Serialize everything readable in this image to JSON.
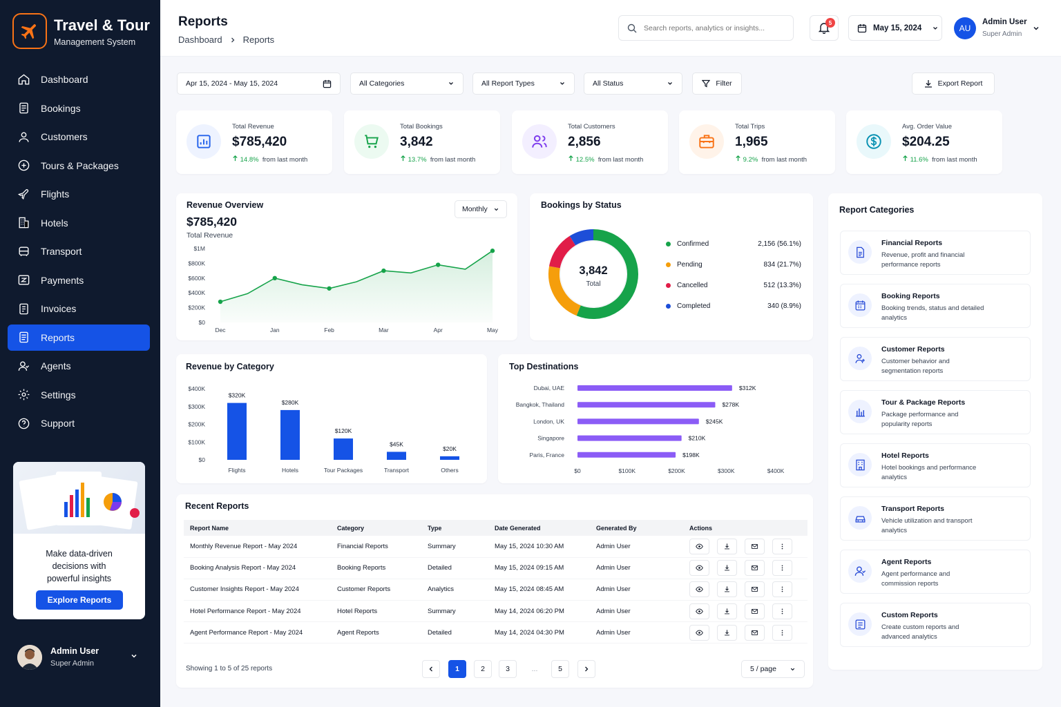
{
  "brand": {
    "title": "Travel & Tour",
    "subtitle": "Management System"
  },
  "nav": [
    {
      "label": "Dashboard",
      "icon": "home-icon"
    },
    {
      "label": "Bookings",
      "icon": "document-icon"
    },
    {
      "label": "Customers",
      "icon": "user-icon"
    },
    {
      "label": "Tours & Packages",
      "icon": "plus-circle-icon"
    },
    {
      "label": "Flights",
      "icon": "plane-icon"
    },
    {
      "label": "Hotels",
      "icon": "building-icon"
    },
    {
      "label": "Transport",
      "icon": "bus-icon"
    },
    {
      "label": "Payments",
      "icon": "card-icon"
    },
    {
      "label": "Invoices",
      "icon": "invoice-icon"
    },
    {
      "label": "Reports",
      "icon": "report-icon",
      "active": true
    },
    {
      "label": "Agents",
      "icon": "agent-icon"
    },
    {
      "label": "Settings",
      "icon": "gear-icon"
    },
    {
      "label": "Support",
      "icon": "help-icon"
    }
  ],
  "promo": {
    "text": "Make data-driven\ndecisions with\npowerful insights",
    "button": "Explore Reports"
  },
  "sidebar_user": {
    "name": "Admin User",
    "role": "Super Admin"
  },
  "header": {
    "title": "Reports",
    "breadcrumb": [
      "Dashboard",
      "Reports"
    ],
    "search_placeholder": "Search reports, analytics or insights...",
    "notifications": "5",
    "date": "May 15, 2024",
    "user": {
      "initials": "AU",
      "name": "Admin User",
      "role": "Super Admin"
    }
  },
  "filters": {
    "date_range": "Apr 15, 2024 - May 15, 2024",
    "category": "All Categories",
    "report_type": "All Report Types",
    "status": "All Status",
    "filter_label": "Filter",
    "export_label": "Export Report"
  },
  "stats": [
    {
      "label": "Total Revenue",
      "value": "$785,420",
      "change": "14.8%",
      "suffix": "from last month",
      "color": "#2563eb",
      "bg": "#eef3ff",
      "icon": "chart-icon"
    },
    {
      "label": "Total Bookings",
      "value": "3,842",
      "change": "13.7%",
      "suffix": "from last month",
      "color": "#16a34a",
      "bg": "#ecfaf1",
      "icon": "cart-icon"
    },
    {
      "label": "Total Customers",
      "value": "2,856",
      "change": "12.5%",
      "suffix": "from last month",
      "color": "#7c3aed",
      "bg": "#f3efff",
      "icon": "users-icon"
    },
    {
      "label": "Total Trips",
      "value": "1,965",
      "change": "9.2%",
      "suffix": "from last month",
      "color": "#f97316",
      "bg": "#fff3e9",
      "icon": "suitcase-icon"
    },
    {
      "label": "Avg. Order Value",
      "value": "$204.25",
      "change": "11.6%",
      "suffix": "from last month",
      "color": "#0891b2",
      "bg": "#e9f8fb",
      "icon": "dollar-icon"
    }
  ],
  "revenue_overview": {
    "title": "Revenue Overview",
    "value": "$785,420",
    "sublabel": "Total Revenue",
    "period": "Monthly"
  },
  "bookings_status": {
    "title": "Bookings by Status",
    "total": "3,842",
    "total_label": "Total"
  },
  "revenue_category": {
    "title": "Revenue by Category"
  },
  "top_destinations": {
    "title": "Top Destinations"
  },
  "chart_data": [
    {
      "type": "area",
      "title": "Revenue Overview",
      "categories": [
        "Dec",
        "Jan",
        "Feb",
        "Mar",
        "Apr",
        "May"
      ],
      "x": [
        "Dec",
        "",
        "Jan",
        "",
        "Feb",
        "",
        "Mar",
        "",
        "Apr",
        "",
        "May"
      ],
      "values": [
        280000,
        390000,
        600000,
        510000,
        460000,
        550000,
        700000,
        670000,
        780000,
        720000,
        970000
      ],
      "yticks": [
        "$0",
        "$200K",
        "$400K",
        "$600K",
        "$800K",
        "$1M"
      ],
      "ylim": [
        0,
        1000000
      ],
      "color": "#16a34a",
      "grid": false
    },
    {
      "type": "pie",
      "title": "Bookings by Status",
      "series": [
        {
          "name": "Confirmed",
          "value": 2156,
          "label": "2,156 (56.1%)",
          "color": "#16a34a"
        },
        {
          "name": "Pending",
          "value": 834,
          "label": "834 (21.7%)",
          "color": "#f59e0b"
        },
        {
          "name": "Cancelled",
          "value": 512,
          "label": "512 (13.3%)",
          "color": "#e11d48"
        },
        {
          "name": "Completed",
          "value": 340,
          "label": "340 (8.9%)",
          "color": "#1d4ed8"
        }
      ]
    },
    {
      "type": "bar",
      "title": "Revenue by Category",
      "categories": [
        "Flights",
        "Hotels",
        "Tour Packages",
        "Transport",
        "Others"
      ],
      "values": [
        320000,
        280000,
        120000,
        45000,
        20000
      ],
      "labels": [
        "$320K",
        "$280K",
        "$120K",
        "$45K",
        "$20K"
      ],
      "yticks": [
        "$0",
        "$100K",
        "$200K",
        "$300K",
        "$400K"
      ],
      "ylim": [
        0,
        400000
      ],
      "color": "#1553e6"
    },
    {
      "type": "bar",
      "orientation": "horizontal",
      "title": "Top Destinations",
      "categories": [
        "Dubai, UAE",
        "Bangkok, Thailand",
        "London, UK",
        "Singapore",
        "Paris, France"
      ],
      "values": [
        312000,
        278000,
        245000,
        210000,
        198000
      ],
      "labels": [
        "$312K",
        "$278K",
        "$245K",
        "$210K",
        "$198K"
      ],
      "xticks": [
        "$0",
        "$100K",
        "$200K",
        "$300K",
        "$400K"
      ],
      "xlim": [
        0,
        400000
      ],
      "color": "#8b5cf6"
    }
  ],
  "report_categories": {
    "title": "Report Categories",
    "items": [
      {
        "title": "Financial Reports",
        "desc": "Revenue, profit and financial performance reports",
        "icon": "file-icon"
      },
      {
        "title": "Booking Reports",
        "desc": "Booking trends, status and detailed analytics",
        "icon": "calendar-icon"
      },
      {
        "title": "Customer Reports",
        "desc": "Customer behavior and segmentation reports",
        "icon": "user-group-icon"
      },
      {
        "title": "Tour & Package Reports",
        "desc": "Package performance and popularity reports",
        "icon": "bars-icon"
      },
      {
        "title": "Hotel Reports",
        "desc": "Hotel bookings and performance analytics",
        "icon": "hotel-icon"
      },
      {
        "title": "Transport Reports",
        "desc": "Vehicle utilization and transport analytics",
        "icon": "car-icon"
      },
      {
        "title": "Agent Reports",
        "desc": "Agent performance and commission reports",
        "icon": "agent-icon"
      },
      {
        "title": "Custom Reports",
        "desc": "Create custom reports and advanced analytics",
        "icon": "custom-icon"
      }
    ]
  },
  "recent_reports": {
    "title": "Recent Reports",
    "columns": [
      "Report Name",
      "Category",
      "Type",
      "Date Generated",
      "Generated By",
      "Actions"
    ],
    "rows": [
      [
        "Monthly Revenue Report - May 2024",
        "Financial Reports",
        "Summary",
        "May 15, 2024 10:30 AM",
        "Admin User"
      ],
      [
        "Booking Analysis Report - May 2024",
        "Booking Reports",
        "Detailed",
        "May 15, 2024 09:15 AM",
        "Admin User"
      ],
      [
        "Customer Insights Report - May 2024",
        "Customer Reports",
        "Analytics",
        "May 15, 2024 08:45 AM",
        "Admin User"
      ],
      [
        "Hotel Performance Report - May 2024",
        "Hotel Reports",
        "Summary",
        "May 14, 2024 06:20 PM",
        "Admin User"
      ],
      [
        "Agent Performance Report - May 2024",
        "Agent Reports",
        "Detailed",
        "May 14, 2024 04:30 PM",
        "Admin User"
      ]
    ],
    "showing": "Showing 1 to 5 of 25 reports",
    "pages": [
      "1",
      "2",
      "3",
      "...",
      "5"
    ],
    "per_page": "5 / page"
  }
}
